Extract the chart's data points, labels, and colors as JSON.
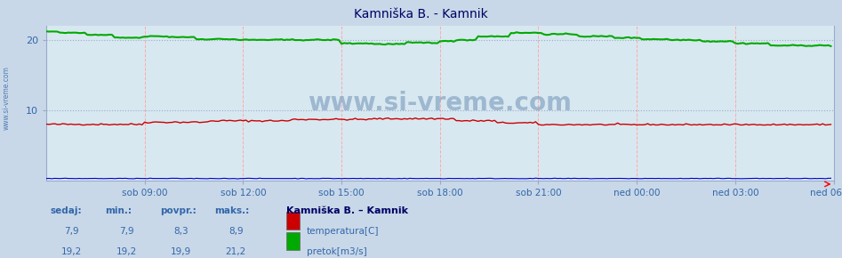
{
  "title": "Kamniška B. - Kamnik",
  "fig_bg_color": "#c8d8e8",
  "plot_bg_color": "#d8e8f0",
  "ylim": [
    0,
    22
  ],
  "yticks": [
    10,
    20
  ],
  "n_points": 288,
  "x_tick_labels": [
    "sob 09:00",
    "sob 12:00",
    "sob 15:00",
    "sob 18:00",
    "sob 21:00",
    "ned 00:00",
    "ned 03:00",
    "ned 06:00"
  ],
  "x_tick_positions": [
    36,
    72,
    108,
    144,
    180,
    216,
    252,
    288
  ],
  "temp_color": "#cc0000",
  "flow_color": "#00aa00",
  "height_color": "#0000cc",
  "watermark": "www.si-vreme.com",
  "watermark_color": "#7799bb",
  "sidebar_text": "www.si-vreme.com",
  "sidebar_color": "#3366aa",
  "title_color": "#000066",
  "grid_h_color": "#99aacc",
  "grid_v_color": "#ffaaaa",
  "legend_title": "Kamniška B. – Kamnik",
  "legend_title_color": "#000066",
  "temp_label": "temperatura[C]",
  "flow_label": "pretok[m3/s]",
  "stats_label_color": "#3366aa",
  "stats_value_color": "#3366aa",
  "temp_min": 7.9,
  "temp_avg": 8.3,
  "temp_max": 8.9,
  "temp_sedaj": 7.9,
  "flow_min": 19.2,
  "flow_avg": 19.9,
  "flow_max": 21.2,
  "flow_sedaj": 19.2
}
